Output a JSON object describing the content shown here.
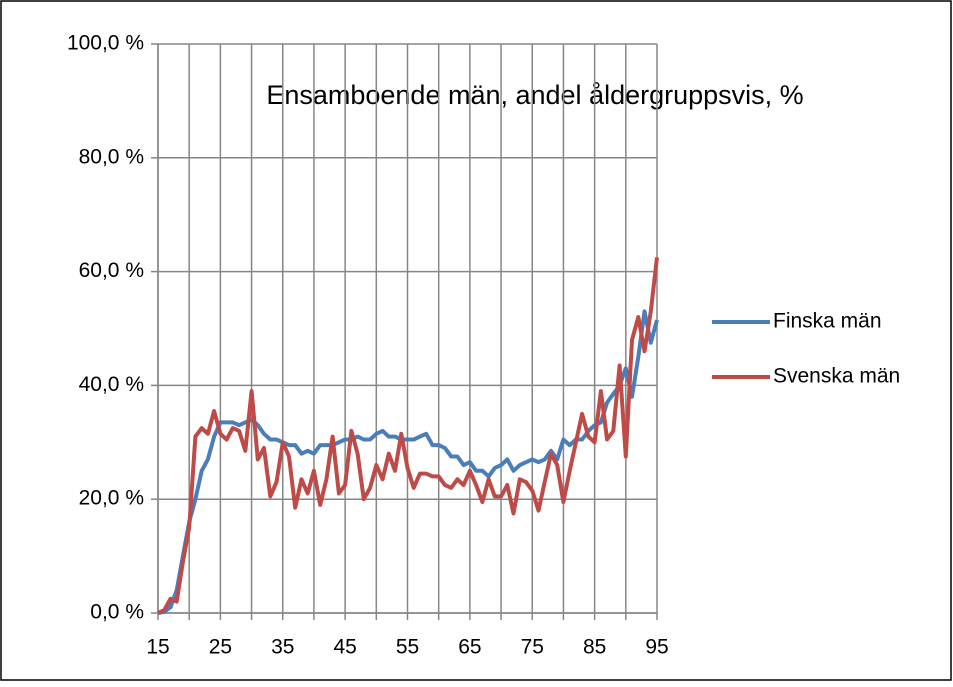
{
  "chart_data": {
    "type": "line",
    "title": "Ensamboende män, andel åldergruppsvis, %",
    "x": [
      15,
      16,
      17,
      18,
      19,
      20,
      21,
      22,
      23,
      24,
      25,
      26,
      27,
      28,
      29,
      30,
      31,
      32,
      33,
      34,
      35,
      36,
      37,
      38,
      39,
      40,
      41,
      42,
      43,
      44,
      45,
      46,
      47,
      48,
      49,
      50,
      51,
      52,
      53,
      54,
      55,
      56,
      57,
      58,
      59,
      60,
      61,
      62,
      63,
      64,
      65,
      66,
      67,
      68,
      69,
      70,
      71,
      72,
      73,
      74,
      75,
      76,
      77,
      78,
      79,
      80,
      81,
      82,
      83,
      84,
      85,
      86,
      87,
      88,
      89,
      90,
      91,
      92,
      93,
      94,
      95
    ],
    "series": [
      {
        "name": "Finska män",
        "color": "#4a7ebb",
        "values": [
          0,
          0.2,
          1,
          4,
          10,
          16,
          20,
          25,
          27,
          31,
          33.5,
          33.5,
          33.5,
          33,
          33.5,
          34,
          33,
          31.5,
          30.5,
          30.5,
          30,
          29.5,
          29.5,
          28,
          28.5,
          28,
          29.5,
          29.5,
          29.5,
          30,
          30.5,
          30.5,
          31,
          30.5,
          30.5,
          31.5,
          32,
          31,
          31,
          30.5,
          30.5,
          30.5,
          31,
          31.5,
          29.5,
          29.5,
          29,
          27.5,
          27.5,
          26,
          26.5,
          25,
          25,
          24,
          25.5,
          26,
          27,
          25,
          26,
          26.5,
          27,
          26.5,
          27,
          28.5,
          27,
          30.5,
          29.5,
          30.5,
          30.5,
          32,
          33,
          33.5,
          37,
          38.5,
          40,
          43,
          38,
          45,
          53,
          47.5,
          51.5
        ]
      },
      {
        "name": "Svenska män",
        "color": "#be4b48",
        "values": [
          0,
          0.5,
          2.5,
          2,
          9,
          15,
          31,
          32.5,
          31.5,
          35.5,
          31.5,
          30.5,
          32.5,
          32,
          28.5,
          39,
          27,
          29,
          20.5,
          23,
          30,
          27.5,
          18.5,
          23.5,
          21,
          25,
          19,
          23.5,
          31,
          21,
          22.5,
          32,
          28,
          20,
          22,
          26,
          23.5,
          28,
          25,
          31.5,
          25.5,
          22,
          24.5,
          24.5,
          24,
          24,
          22.5,
          22,
          23.5,
          22.5,
          25,
          22.5,
          19.5,
          23.5,
          20.5,
          20.5,
          22.5,
          17.5,
          23.5,
          23,
          21.5,
          18,
          23,
          28,
          26,
          19.5,
          25,
          30,
          35,
          31,
          30,
          39,
          30.5,
          32,
          43.5,
          27.5,
          48,
          52,
          46,
          53,
          62.5
        ]
      }
    ],
    "xlim": [
      15,
      95
    ],
    "xticks": [
      15,
      25,
      35,
      45,
      55,
      65,
      75,
      85,
      95
    ],
    "x_minor_grid": [
      20,
      30,
      40,
      50,
      60,
      70,
      80,
      90
    ],
    "ylim": [
      0,
      100
    ],
    "yticks": [
      {
        "value": 0,
        "label": "0,0 %"
      },
      {
        "value": 20,
        "label": "20,0 %"
      },
      {
        "value": 40,
        "label": "40,0 %"
      },
      {
        "value": 60,
        "label": "60,0 %"
      },
      {
        "value": 80,
        "label": "80,0 %"
      },
      {
        "value": 100,
        "label": "100,0 %"
      }
    ],
    "grid": true,
    "legend": "right"
  }
}
